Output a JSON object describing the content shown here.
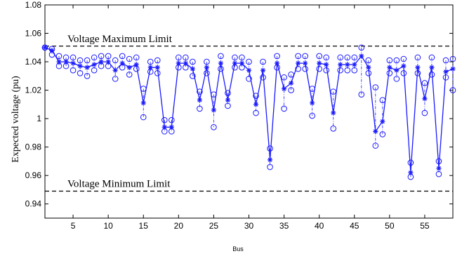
{
  "chart_data": {
    "type": "line",
    "xlabel": "Bus",
    "ylabel": "Expected voltage (pu)",
    "xlim": [
      1,
      59
    ],
    "ylim": [
      0.93,
      1.08
    ],
    "xticks": [
      5,
      10,
      15,
      20,
      25,
      30,
      35,
      40,
      45,
      50,
      55
    ],
    "yticks": [
      0.94,
      0.96,
      0.98,
      1.0,
      1.02,
      1.04,
      1.06,
      1.08
    ],
    "ytick_labels": [
      "0.94",
      "0.96",
      "0.98",
      "1",
      "1.02",
      "1.04",
      "1.06",
      "1.08"
    ],
    "grid": false,
    "colors": {
      "series": "#1a1aff",
      "limit": "#000000"
    },
    "x": [
      1,
      2,
      3,
      4,
      5,
      6,
      7,
      8,
      9,
      10,
      11,
      12,
      13,
      14,
      15,
      16,
      17,
      18,
      19,
      20,
      21,
      22,
      23,
      24,
      25,
      26,
      27,
      28,
      29,
      30,
      31,
      32,
      33,
      34,
      35,
      36,
      37,
      38,
      39,
      40,
      41,
      42,
      43,
      44,
      45,
      46,
      47,
      48,
      49,
      50,
      51,
      52,
      53,
      54,
      55,
      56,
      57,
      58,
      59
    ],
    "series": [
      {
        "marker": "asterisk",
        "values": [
          1.05,
          1.048,
          1.04,
          1.04,
          1.039,
          1.037,
          1.036,
          1.038,
          1.04,
          1.04,
          1.034,
          1.039,
          1.036,
          1.038,
          1.011,
          1.036,
          1.036,
          0.994,
          0.994,
          1.039,
          1.039,
          1.035,
          1.013,
          1.036,
          1.006,
          1.039,
          1.013,
          1.039,
          1.039,
          1.034,
          1.01,
          1.034,
          0.971,
          1.039,
          1.021,
          1.025,
          1.039,
          1.039,
          1.011,
          1.039,
          1.038,
          1.004,
          1.038,
          1.038,
          1.038,
          1.044,
          1.036,
          0.991,
          0.998,
          1.036,
          1.034,
          1.037,
          0.962,
          1.036,
          1.014,
          1.036,
          0.965,
          1.033,
          1.035
        ]
      },
      {
        "marker": "circle",
        "values": [
          1.05,
          1.049,
          1.044,
          1.043,
          1.043,
          1.041,
          1.041,
          1.043,
          1.044,
          1.044,
          1.041,
          1.044,
          1.042,
          1.043,
          1.021,
          1.04,
          1.041,
          0.999,
          0.999,
          1.043,
          1.043,
          1.04,
          1.019,
          1.04,
          1.017,
          1.044,
          1.018,
          1.043,
          1.043,
          1.04,
          1.016,
          1.04,
          0.979,
          1.044,
          1.029,
          1.031,
          1.044,
          1.044,
          1.021,
          1.044,
          1.043,
          1.019,
          1.043,
          1.043,
          1.043,
          1.05,
          1.041,
          1.022,
          1.013,
          1.041,
          1.041,
          1.042,
          0.969,
          1.043,
          1.025,
          1.043,
          0.97,
          1.041,
          1.042
        ]
      },
      {
        "marker": "circle",
        "values": [
          1.05,
          1.045,
          1.037,
          1.037,
          1.034,
          1.032,
          1.03,
          1.034,
          1.037,
          1.037,
          1.028,
          1.036,
          1.031,
          1.035,
          1.001,
          1.033,
          1.032,
          0.991,
          0.991,
          1.036,
          1.036,
          1.03,
          1.007,
          1.032,
          0.994,
          1.035,
          1.009,
          1.036,
          1.036,
          1.028,
          1.004,
          1.029,
          0.966,
          1.036,
          1.007,
          1.02,
          1.035,
          1.035,
          1.002,
          1.035,
          1.034,
          0.993,
          1.034,
          1.034,
          1.034,
          1.017,
          1.032,
          0.981,
          0.989,
          1.032,
          1.028,
          1.032,
          0.959,
          1.032,
          1.004,
          1.031,
          0.961,
          1.029,
          1.02
        ]
      }
    ],
    "limits": [
      {
        "label": "Voltage Maximum Limit",
        "value": 1.051
      },
      {
        "label": "Voltage Minimum Limit",
        "value": 0.949
      }
    ]
  }
}
